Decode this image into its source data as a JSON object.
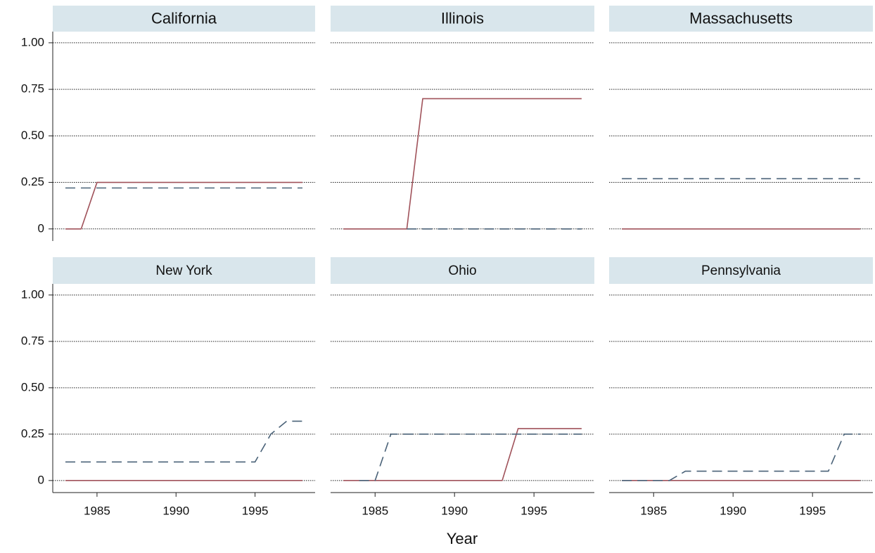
{
  "x_label": "Year",
  "chart_data": [
    {
      "type": "line",
      "title": "California",
      "x": [
        1983,
        1984,
        1985,
        1986,
        1987,
        1988,
        1989,
        1990,
        1991,
        1992,
        1993,
        1994,
        1995,
        1996,
        1997,
        1998
      ],
      "series": [
        {
          "color": "#a0525a",
          "dash": false,
          "values": [
            0,
            0,
            0.25,
            0.25,
            0.25,
            0.25,
            0.25,
            0.25,
            0.25,
            0.25,
            0.25,
            0.25,
            0.25,
            0.25,
            0.25,
            0.25
          ]
        },
        {
          "color": "#4a6278",
          "dash": true,
          "values": [
            0.22,
            0.22,
            0.22,
            0.22,
            0.22,
            0.22,
            0.22,
            0.22,
            0.22,
            0.22,
            0.22,
            0.22,
            0.22,
            0.22,
            0.22,
            0.22
          ]
        }
      ],
      "xlim": [
        1982.2,
        1998.8
      ],
      "ylim": [
        -0.065,
        1.06
      ],
      "y_tick_labels": true,
      "yticks": [
        0,
        0.25,
        {
          "value": 0.5,
          "label": "0.50"
        },
        0.75,
        {
          "value": 1,
          "label": "1.00"
        }
      ],
      "grid": true
    },
    {
      "type": "line",
      "title": "Illinois",
      "x": [
        1983,
        1984,
        1985,
        1986,
        1987,
        1988,
        1989,
        1990,
        1991,
        1992,
        1993,
        1994,
        1995,
        1996,
        1997,
        1998
      ],
      "series": [
        {
          "color": "#a0525a",
          "dash": false,
          "values": [
            0,
            0,
            0,
            0,
            0,
            0.7,
            0.7,
            0.7,
            0.7,
            0.7,
            0.7,
            0.7,
            0.7,
            0.7,
            0.7,
            0.7
          ]
        },
        {
          "color": "#4a6278",
          "dash": true,
          "values": [
            null,
            null,
            null,
            null,
            0,
            0,
            0,
            0,
            0,
            0,
            0,
            0,
            0,
            0,
            0,
            0
          ]
        }
      ],
      "xlim": [
        1982.2,
        1998.8
      ],
      "ylim": [
        -0.065,
        1.06
      ],
      "y_tick_labels": false,
      "yticks": [
        0,
        0.25,
        0.5,
        0.75,
        1
      ],
      "grid": true
    },
    {
      "type": "line",
      "title": "Massachusetts",
      "x": [
        1983,
        1984,
        1985,
        1986,
        1987,
        1988,
        1989,
        1990,
        1991,
        1992,
        1993,
        1994,
        1995,
        1996,
        1997,
        1998
      ],
      "series": [
        {
          "color": "#a0525a",
          "dash": false,
          "values": [
            0,
            0,
            0,
            0,
            0,
            0,
            0,
            0,
            0,
            0,
            0,
            0,
            0,
            0,
            0,
            0
          ]
        },
        {
          "color": "#4a6278",
          "dash": true,
          "values": [
            0.27,
            0.27,
            0.27,
            0.27,
            0.27,
            0.27,
            0.27,
            0.27,
            0.27,
            0.27,
            0.27,
            0.27,
            0.27,
            0.27,
            0.27,
            0.27
          ]
        }
      ],
      "xlim": [
        1982.2,
        1998.8
      ],
      "ylim": [
        -0.065,
        1.06
      ],
      "y_tick_labels": false,
      "yticks": [
        0,
        0.25,
        0.5,
        0.75,
        1
      ],
      "grid": true
    },
    {
      "type": "line",
      "title": "New York",
      "x": [
        1983,
        1984,
        1985,
        1986,
        1987,
        1988,
        1989,
        1990,
        1991,
        1992,
        1993,
        1994,
        1995,
        1996,
        1997,
        1998
      ],
      "series": [
        {
          "color": "#a0525a",
          "dash": false,
          "values": [
            0,
            0,
            0,
            0,
            0,
            0,
            0,
            0,
            0,
            0,
            0,
            0,
            0,
            0,
            0,
            0
          ]
        },
        {
          "color": "#4a6278",
          "dash": true,
          "values": [
            0.1,
            0.1,
            0.1,
            0.1,
            0.1,
            0.1,
            0.1,
            0.1,
            0.1,
            0.1,
            0.1,
            0.1,
            0.1,
            0.25,
            0.32,
            0.32
          ]
        }
      ],
      "xlim": [
        1982.2,
        1998.8
      ],
      "ylim": [
        -0.065,
        1.06
      ],
      "y_tick_labels": true,
      "yticks": [
        0,
        0.25,
        {
          "value": 0.5,
          "label": "0.50"
        },
        0.75,
        {
          "value": 1,
          "label": "1.00"
        }
      ],
      "grid": true,
      "xticks": [
        1985,
        1990,
        1995
      ]
    },
    {
      "type": "line",
      "title": "Ohio",
      "x": [
        1983,
        1984,
        1985,
        1986,
        1987,
        1988,
        1989,
        1990,
        1991,
        1992,
        1993,
        1994,
        1995,
        1996,
        1997,
        1998
      ],
      "series": [
        {
          "color": "#a0525a",
          "dash": false,
          "values": [
            0,
            0,
            0,
            0,
            0,
            0,
            0,
            0,
            0,
            0,
            0,
            0.28,
            0.28,
            0.28,
            0.28,
            0.28
          ]
        },
        {
          "color": "#4a6278",
          "dash": true,
          "values": [
            null,
            0,
            0,
            0.25,
            0.25,
            0.25,
            0.25,
            0.25,
            0.25,
            0.25,
            0.25,
            0.25,
            0.25,
            0.25,
            0.25,
            0.25
          ]
        }
      ],
      "xlim": [
        1982.2,
        1998.8
      ],
      "ylim": [
        -0.065,
        1.06
      ],
      "y_tick_labels": false,
      "yticks": [
        0,
        0.25,
        0.5,
        0.75,
        1
      ],
      "grid": true,
      "xticks": [
        1985,
        1990,
        1995
      ]
    },
    {
      "type": "line",
      "title": "Pennsylvania",
      "x": [
        1983,
        1984,
        1985,
        1986,
        1987,
        1988,
        1989,
        1990,
        1991,
        1992,
        1993,
        1994,
        1995,
        1996,
        1997,
        1998
      ],
      "series": [
        {
          "color": "#a0525a",
          "dash": false,
          "values": [
            0,
            0,
            0,
            0,
            0,
            0,
            0,
            0,
            0,
            0,
            0,
            0,
            0,
            0,
            0,
            0
          ]
        },
        {
          "color": "#4a6278",
          "dash": true,
          "values": [
            0,
            0,
            0,
            0,
            0.05,
            0.05,
            0.05,
            0.05,
            0.05,
            0.05,
            0.05,
            0.05,
            0.05,
            0.05,
            0.25,
            0.25
          ]
        }
      ],
      "xlim": [
        1982.2,
        1998.8
      ],
      "ylim": [
        -0.065,
        1.06
      ],
      "y_tick_labels": false,
      "yticks": [
        0,
        0.25,
        0.5,
        0.75,
        1
      ],
      "grid": true,
      "xticks": [
        1985,
        1990,
        1995
      ]
    }
  ]
}
